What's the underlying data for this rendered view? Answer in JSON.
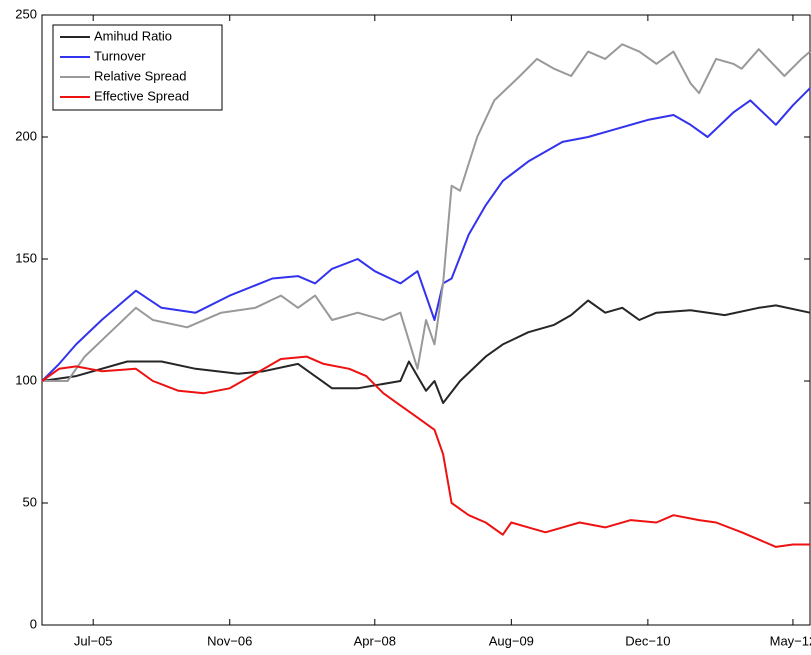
{
  "chart_data": {
    "type": "line",
    "xlim": [
      "2005-01",
      "2012-07"
    ],
    "xticks": [
      {
        "value": "2005-07",
        "label": "Jul−05"
      },
      {
        "value": "2006-11",
        "label": "Nov−06"
      },
      {
        "value": "2008-04",
        "label": "Apr−08"
      },
      {
        "value": "2009-08",
        "label": "Aug−09"
      },
      {
        "value": "2010-12",
        "label": "Dec−10"
      },
      {
        "value": "2012-05",
        "label": "May−12"
      }
    ],
    "ylim": [
      0,
      250
    ],
    "yticks": [
      0,
      50,
      100,
      150,
      200,
      250
    ],
    "legend": "upper left",
    "series": [
      {
        "name": "Amihud Ratio",
        "color": "#262626",
        "x": [
          "2005-01",
          "2005-05",
          "2005-11",
          "2006-03",
          "2006-07",
          "2006-12",
          "2007-03",
          "2007-07",
          "2007-11",
          "2008-02",
          "2008-07",
          "2008-08",
          "2008-10",
          "2008-11",
          "2008-12",
          "2009-02",
          "2009-05",
          "2009-07",
          "2009-10",
          "2010-01",
          "2010-03",
          "2010-05",
          "2010-07",
          "2010-09",
          "2010-11",
          "2011-01",
          "2011-05",
          "2011-09",
          "2012-01",
          "2012-03",
          "2012-07"
        ],
        "values": [
          100,
          102,
          108,
          108,
          105,
          103,
          104,
          107,
          97,
          97,
          100,
          108,
          96,
          100,
          91,
          100,
          110,
          115,
          120,
          123,
          127,
          133,
          128,
          130,
          125,
          128,
          129,
          127,
          130,
          131,
          128
        ]
      },
      {
        "name": "Turnover",
        "color": "#3333ee",
        "x": [
          "2005-01",
          "2005-03",
          "2005-05",
          "2005-08",
          "2005-12",
          "2006-03",
          "2006-07",
          "2006-11",
          "2007-04",
          "2007-07",
          "2007-09",
          "2007-11",
          "2008-02",
          "2008-04",
          "2008-07",
          "2008-09",
          "2008-11",
          "2008-12",
          "2009-01",
          "2009-03",
          "2009-05",
          "2009-07",
          "2009-10",
          "2010-02",
          "2010-05",
          "2010-08",
          "2010-12",
          "2011-03",
          "2011-05",
          "2011-07",
          "2011-10",
          "2011-12",
          "2012-03",
          "2012-05",
          "2012-07"
        ],
        "values": [
          100,
          107,
          115,
          125,
          137,
          130,
          128,
          135,
          142,
          143,
          140,
          146,
          150,
          145,
          140,
          145,
          125,
          140,
          142,
          160,
          172,
          182,
          190,
          198,
          200,
          203,
          207,
          209,
          205,
          200,
          210,
          215,
          205,
          213,
          220
        ]
      },
      {
        "name": "Relative Spread",
        "color": "#999999",
        "x": [
          "2005-01",
          "2005-04",
          "2005-06",
          "2005-09",
          "2005-12",
          "2006-02",
          "2006-06",
          "2006-10",
          "2007-02",
          "2007-05",
          "2007-07",
          "2007-09",
          "2007-11",
          "2008-02",
          "2008-05",
          "2008-07",
          "2008-09",
          "2008-10",
          "2008-11",
          "2008-12",
          "2009-01",
          "2009-02",
          "2009-04",
          "2009-06",
          "2009-09",
          "2009-11",
          "2010-01",
          "2010-03",
          "2010-05",
          "2010-07",
          "2010-09",
          "2010-11",
          "2011-01",
          "2011-03",
          "2011-05",
          "2011-06",
          "2011-08",
          "2011-10",
          "2011-11",
          "2012-01",
          "2012-04",
          "2012-06",
          "2012-07"
        ],
        "values": [
          100,
          100,
          110,
          120,
          130,
          125,
          122,
          128,
          130,
          135,
          130,
          135,
          125,
          128,
          125,
          128,
          105,
          125,
          115,
          140,
          180,
          178,
          200,
          215,
          225,
          232,
          228,
          225,
          235,
          232,
          238,
          235,
          230,
          235,
          222,
          218,
          232,
          230,
          228,
          236,
          225,
          232,
          235
        ]
      },
      {
        "name": "Effective Spread",
        "color": "#ee1111",
        "x": [
          "2005-01",
          "2005-03",
          "2005-05",
          "2005-08",
          "2005-12",
          "2006-02",
          "2006-05",
          "2006-08",
          "2006-11",
          "2007-02",
          "2007-05",
          "2007-08",
          "2007-10",
          "2008-01",
          "2008-03",
          "2008-05",
          "2008-07",
          "2008-09",
          "2008-11",
          "2008-12",
          "2009-01",
          "2009-03",
          "2009-05",
          "2009-07",
          "2009-08",
          "2009-10",
          "2009-12",
          "2010-02",
          "2010-04",
          "2010-07",
          "2010-10",
          "2011-01",
          "2011-03",
          "2011-06",
          "2011-08",
          "2011-11",
          "2012-01",
          "2012-03",
          "2012-05",
          "2012-07"
        ],
        "values": [
          100,
          105,
          106,
          104,
          105,
          100,
          96,
          95,
          97,
          103,
          109,
          110,
          107,
          105,
          102,
          95,
          90,
          85,
          80,
          70,
          50,
          45,
          42,
          37,
          42,
          40,
          38,
          40,
          42,
          40,
          43,
          42,
          45,
          43,
          42,
          38,
          35,
          32,
          33,
          33
        ]
      }
    ]
  }
}
